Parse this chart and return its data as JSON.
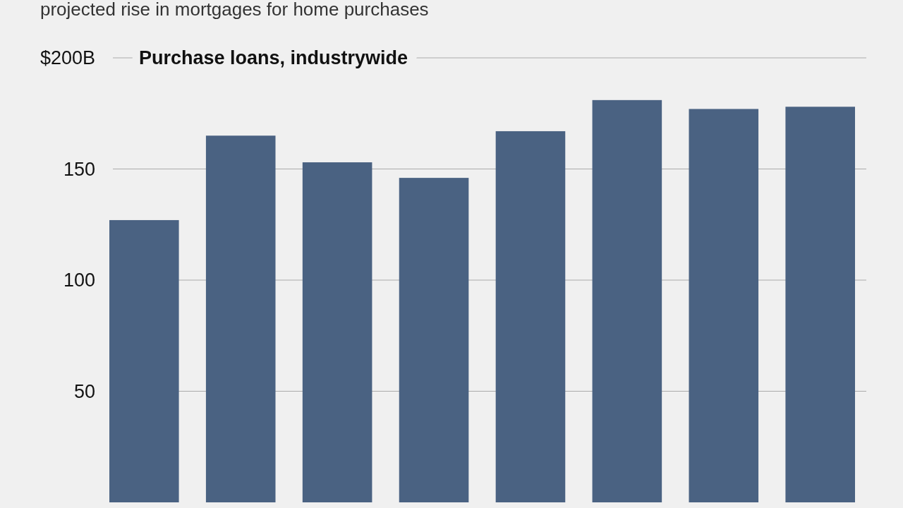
{
  "chart_data": {
    "type": "bar",
    "title": "Purchase loans, industrywide",
    "subtitle": "projected rise in mortgages for home purchases",
    "categories": [
      null,
      null,
      null,
      null,
      null,
      null,
      null,
      null
    ],
    "values": [
      127,
      165,
      153,
      146,
      167,
      181,
      177,
      178
    ],
    "color": "#4a6282",
    "ylim": [
      0,
      200
    ],
    "yticks": [
      50,
      100,
      150,
      {
        "value": 200,
        "label": "$200B"
      }
    ],
    "grid": "y"
  }
}
